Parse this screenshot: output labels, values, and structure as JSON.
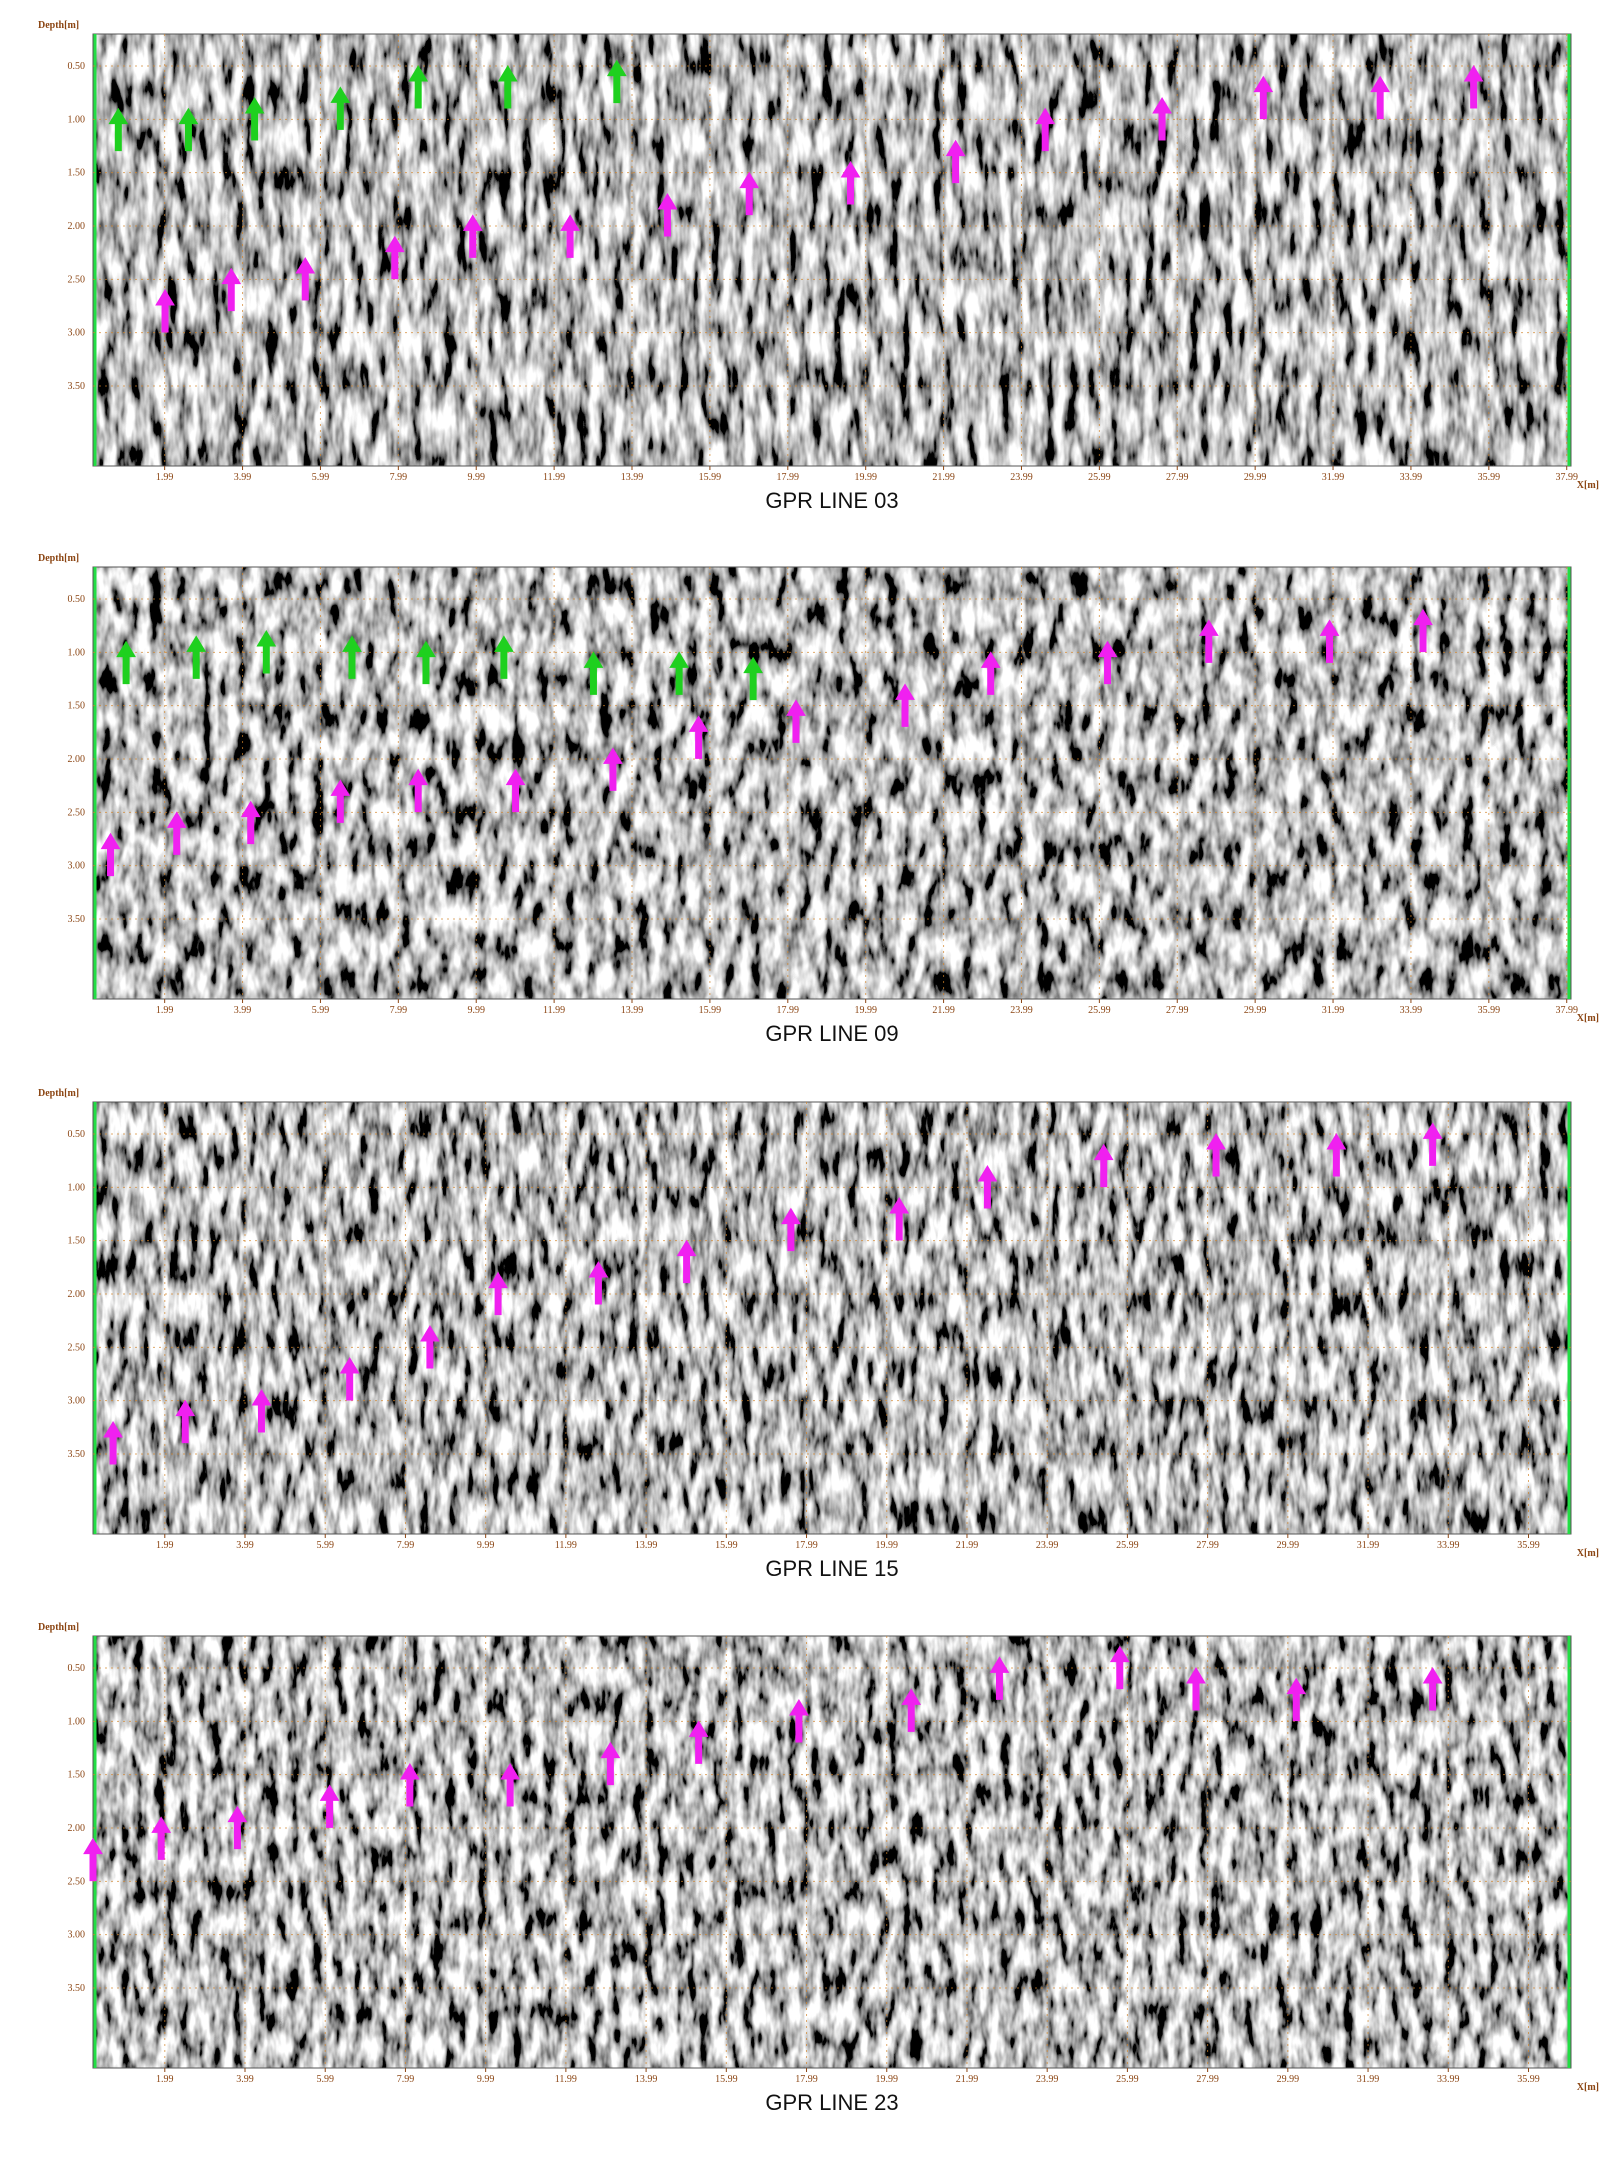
{
  "chart_data": [
    {
      "type": "scatter",
      "title": "GPR LINE 03",
      "xlabel": "X[m]",
      "ylabel": "Depth[m]",
      "y_inverted": true,
      "xlim": [
        0.15,
        38.1
      ],
      "ylim": [
        0.2,
        4.25
      ],
      "xticks": [
        1.99,
        3.99,
        5.99,
        7.99,
        9.99,
        11.99,
        13.99,
        15.99,
        17.99,
        19.99,
        21.99,
        23.99,
        25.99,
        27.99,
        29.99,
        31.99,
        33.99,
        35.99,
        37.99
      ],
      "yticks": [
        {
          "value": 0.5,
          "label": "0.50"
        },
        {
          "value": 1,
          "label": "1.00"
        },
        {
          "value": 1.5,
          "label": "1.50"
        },
        {
          "value": 2,
          "label": "2.00"
        },
        {
          "value": 2.5,
          "label": "2.50"
        },
        {
          "value": 3,
          "label": "3.00"
        },
        {
          "value": 3.5,
          "label": "3.50"
        }
      ],
      "series": [
        {
          "color": "#1fd01f",
          "x": [
            0.8,
            2.6,
            4.3,
            6.5,
            8.5,
            10.8,
            13.6
          ],
          "values": [
            0.9,
            0.9,
            0.8,
            0.7,
            0.5,
            0.5,
            0.45
          ]
        },
        {
          "color": "#f020f0",
          "x": [
            2.0,
            3.7,
            5.6,
            7.9,
            9.9,
            12.4,
            14.9,
            17.0,
            19.6,
            22.3,
            24.6,
            27.6,
            30.2,
            33.2,
            35.6
          ],
          "values": [
            2.6,
            2.4,
            2.3,
            2.1,
            1.9,
            1.9,
            1.7,
            1.5,
            1.4,
            1.2,
            0.9,
            0.8,
            0.6,
            0.6,
            0.5
          ]
        }
      ]
    },
    {
      "type": "scatter",
      "title": "GPR LINE 09",
      "xlabel": "X[m]",
      "ylabel": "Depth[m]",
      "y_inverted": true,
      "xlim": [
        0.15,
        38.1
      ],
      "ylim": [
        0.2,
        4.25
      ],
      "xticks": [
        1.99,
        3.99,
        5.99,
        7.99,
        9.99,
        11.99,
        13.99,
        15.99,
        17.99,
        19.99,
        21.99,
        23.99,
        25.99,
        27.99,
        29.99,
        31.99,
        33.99,
        35.99,
        37.99
      ],
      "yticks": [
        {
          "value": 0.5,
          "label": "0.50"
        },
        {
          "value": 1,
          "label": "1.00"
        },
        {
          "value": 1.5,
          "label": "1.50"
        },
        {
          "value": 2,
          "label": "2.00"
        },
        {
          "value": 2.5,
          "label": "2.50"
        },
        {
          "value": 3,
          "label": "3.00"
        },
        {
          "value": 3.5,
          "label": "3.50"
        }
      ],
      "series": [
        {
          "color": "#1fd01f",
          "x": [
            1.0,
            2.8,
            4.6,
            6.8,
            8.7,
            10.7,
            13.0,
            15.2,
            17.1
          ],
          "values": [
            0.9,
            0.85,
            0.8,
            0.85,
            0.9,
            0.85,
            1.0,
            1.0,
            1.05
          ]
        },
        {
          "color": "#f020f0",
          "x": [
            0.6,
            2.3,
            4.2,
            6.5,
            8.5,
            11.0,
            13.5,
            15.7,
            18.2,
            21.0,
            23.2,
            26.2,
            28.8,
            31.9,
            34.3
          ],
          "values": [
            2.7,
            2.5,
            2.4,
            2.2,
            2.1,
            2.1,
            1.9,
            1.6,
            1.45,
            1.3,
            1.0,
            0.9,
            0.7,
            0.7,
            0.6
          ]
        }
      ]
    },
    {
      "type": "scatter",
      "title": "GPR LINE 15",
      "xlabel": "X[m]",
      "ylabel": "Depth[m]",
      "y_inverted": true,
      "xlim": [
        0.2,
        37.05
      ],
      "ylim": [
        0.2,
        4.25
      ],
      "xticks": [
        1.99,
        3.99,
        5.99,
        7.99,
        9.99,
        11.99,
        13.99,
        15.99,
        17.99,
        19.99,
        21.99,
        23.99,
        25.99,
        27.99,
        29.99,
        31.99,
        33.99,
        35.99
      ],
      "yticks": [
        {
          "value": 0.5,
          "label": "0.50"
        },
        {
          "value": 1,
          "label": "1.00"
        },
        {
          "value": 1.5,
          "label": "1.50"
        },
        {
          "value": 2,
          "label": "2.00"
        },
        {
          "value": 2.5,
          "label": "2.50"
        },
        {
          "value": 3,
          "label": "3.00"
        },
        {
          "value": 3.5,
          "label": "3.50"
        }
      ],
      "series": [
        {
          "color": "#f020f0",
          "x": [
            0.7,
            2.5,
            4.4,
            6.6,
            8.6,
            10.3,
            12.8,
            15.0,
            17.6,
            20.3,
            22.5,
            25.4,
            28.2,
            31.2,
            33.6
          ],
          "values": [
            3.2,
            3.0,
            2.9,
            2.6,
            2.3,
            1.8,
            1.7,
            1.5,
            1.2,
            1.1,
            0.8,
            0.6,
            0.5,
            0.5,
            0.4
          ]
        }
      ]
    },
    {
      "type": "scatter",
      "title": "GPR LINE 23",
      "xlabel": "X[m]",
      "ylabel": "Depth[m]",
      "y_inverted": true,
      "xlim": [
        0.2,
        37.05
      ],
      "ylim": [
        0.2,
        4.25
      ],
      "xticks": [
        1.99,
        3.99,
        5.99,
        7.99,
        9.99,
        11.99,
        13.99,
        15.99,
        17.99,
        19.99,
        21.99,
        23.99,
        25.99,
        27.99,
        29.99,
        31.99,
        33.99,
        35.99
      ],
      "yticks": [
        {
          "value": 0.5,
          "label": "0.50"
        },
        {
          "value": 1,
          "label": "1.00"
        },
        {
          "value": 1.5,
          "label": "1.50"
        },
        {
          "value": 2,
          "label": "2.00"
        },
        {
          "value": 2.5,
          "label": "2.50"
        },
        {
          "value": 3,
          "label": "3.00"
        },
        {
          "value": 3.5,
          "label": "3.50"
        }
      ],
      "series": [
        {
          "color": "#f020f0",
          "x": [
            0.2,
            1.9,
            3.8,
            6.1,
            8.1,
            10.6,
            13.1,
            15.3,
            17.8,
            20.6,
            22.8,
            25.8,
            27.7,
            30.2,
            33.6
          ],
          "values": [
            2.1,
            1.9,
            1.8,
            1.6,
            1.4,
            1.4,
            1.2,
            1.0,
            0.8,
            0.7,
            0.4,
            0.3,
            0.5,
            0.6,
            0.5
          ]
        }
      ]
    }
  ]
}
